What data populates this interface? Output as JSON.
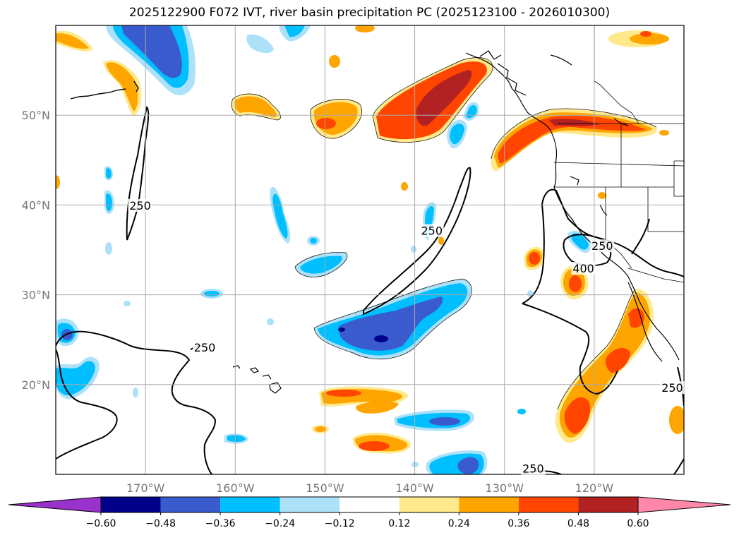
{
  "title": "2025122900 F072 IVT, river basin precipitation PC (2025123100 - 2026010300)",
  "map": {
    "lon_range": [
      -180,
      -110
    ],
    "lat_range": [
      10,
      60
    ],
    "lon_ticks": [
      {
        "value": -170,
        "label": "170°W"
      },
      {
        "value": -160,
        "label": "160°W"
      },
      {
        "value": -150,
        "label": "150°W"
      },
      {
        "value": -140,
        "label": "140°W"
      },
      {
        "value": -130,
        "label": "130°W"
      },
      {
        "value": -120,
        "label": "120°W"
      }
    ],
    "lat_ticks": [
      {
        "value": 50,
        "label": "50°N"
      },
      {
        "value": 40,
        "label": "40°N"
      },
      {
        "value": 30,
        "label": "30°N"
      },
      {
        "value": 20,
        "label": "20°N"
      }
    ],
    "grid": true,
    "contour_labels": [
      {
        "text": "250",
        "lon": -170.6,
        "lat": 39.8
      },
      {
        "text": "250",
        "lon": -138.1,
        "lat": 37.0
      },
      {
        "text": "250",
        "lon": -163.4,
        "lat": 24.0
      },
      {
        "text": "250",
        "lon": -126.8,
        "lat": 10.5
      },
      {
        "text": "250",
        "lon": -119.1,
        "lat": 35.3
      },
      {
        "text": "400",
        "lon": -121.2,
        "lat": 32.8
      },
      {
        "text": "250",
        "lon": -111.3,
        "lat": 19.5
      }
    ]
  },
  "colorbar": {
    "levels": [
      "−0.60",
      "−0.48",
      "−0.36",
      "−0.24",
      "−0.12",
      "0.12",
      "0.24",
      "0.36",
      "0.48",
      "0.60"
    ],
    "colors": [
      "#9932CC",
      "#00008B",
      "#3A5BCD",
      "#00BFFF",
      "#ADE1F9",
      "#FFFFFF",
      "#FFE98A",
      "#FFA500",
      "#FF4500",
      "#B22222",
      "#FF88AA"
    ]
  }
}
